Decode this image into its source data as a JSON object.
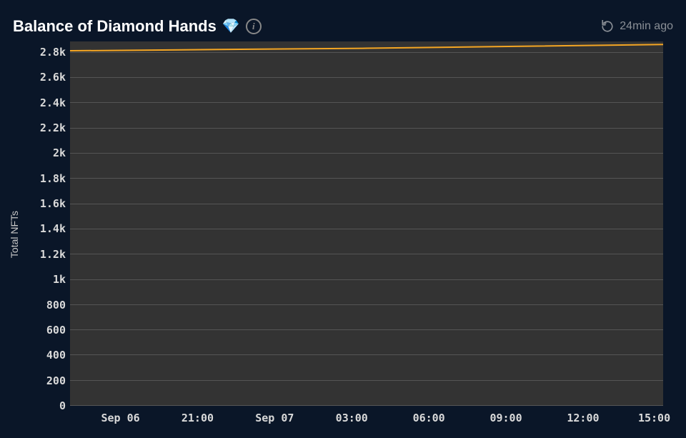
{
  "header": {
    "title": "Balance of Diamond Hands",
    "emoji": "💎",
    "timestamp": "24min ago"
  },
  "chart": {
    "type": "area-line",
    "ylabel": "Total NFTs",
    "background_color": "#0a1628",
    "plot_background": "#333333",
    "grid_color": "#555555",
    "axis_text_color": "#d9d9d9",
    "line_color": "#f5a623",
    "line_width": 2,
    "fill_opacity": 0,
    "y": {
      "min": 0,
      "max": 2800,
      "ticks": [
        {
          "v": 0,
          "label": "0"
        },
        {
          "v": 200,
          "label": "200"
        },
        {
          "v": 400,
          "label": "400"
        },
        {
          "v": 600,
          "label": "600"
        },
        {
          "v": 800,
          "label": "800"
        },
        {
          "v": 1000,
          "label": "1k"
        },
        {
          "v": 1200,
          "label": "1.2k"
        },
        {
          "v": 1400,
          "label": "1.4k"
        },
        {
          "v": 1600,
          "label": "1.6k"
        },
        {
          "v": 1800,
          "label": "1.8k"
        },
        {
          "v": 2000,
          "label": "2k"
        },
        {
          "v": 2200,
          "label": "2.2k"
        },
        {
          "v": 2400,
          "label": "2.4k"
        },
        {
          "v": 2600,
          "label": "2.6k"
        },
        {
          "v": 2800,
          "label": "2.8k"
        }
      ]
    },
    "x": {
      "ticks": [
        {
          "pos": 0.085,
          "label": "Sep 06"
        },
        {
          "pos": 0.215,
          "label": "21:00"
        },
        {
          "pos": 0.345,
          "label": "Sep 07"
        },
        {
          "pos": 0.475,
          "label": "03:00"
        },
        {
          "pos": 0.605,
          "label": "06:00"
        },
        {
          "pos": 0.735,
          "label": "09:00"
        },
        {
          "pos": 0.865,
          "label": "12:00"
        },
        {
          "pos": 0.985,
          "label": "15:00"
        }
      ]
    },
    "series": {
      "points": [
        {
          "x": 0.0,
          "y": 2810
        },
        {
          "x": 0.25,
          "y": 2820
        },
        {
          "x": 0.5,
          "y": 2830
        },
        {
          "x": 0.75,
          "y": 2845
        },
        {
          "x": 1.0,
          "y": 2860
        }
      ]
    }
  }
}
